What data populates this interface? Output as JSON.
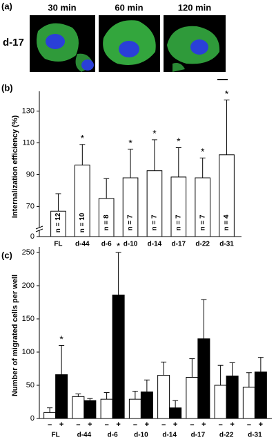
{
  "image_panel": {
    "panel_label": "(a)",
    "row_label": "d-17",
    "columns": [
      "30 min",
      "60 min",
      "120 min"
    ]
  },
  "chart_data": [
    {
      "type": "bar",
      "panel_label": "(b)",
      "ylabel": "Internalization efficiency (%)",
      "categories": [
        "FL",
        "d-44",
        "d-6",
        "d-10",
        "d-14",
        "d-17",
        "d-22",
        "d-31"
      ],
      "values": [
        67,
        96,
        75,
        88,
        92.5,
        88.5,
        88,
        102.5
      ],
      "errors": [
        11,
        13,
        12.5,
        18,
        19.5,
        18.5,
        12.5,
        34.5
      ],
      "n_labels": [
        "n = 12",
        "n = 10",
        "n = 8",
        "n = 7",
        "n = 7",
        "n = 7",
        "n = 7",
        "n = 4"
      ],
      "significance": [
        null,
        "*",
        null,
        "*",
        "*",
        "*",
        "*",
        "*"
      ],
      "color": "#ffffff",
      "ylim": [
        51,
        139
      ],
      "yticks": [
        0,
        70,
        90,
        110,
        130
      ],
      "axis_break": true
    },
    {
      "type": "grouped-bar",
      "panel_label": "(c)",
      "ylabel": "Number of migrated cells per well",
      "categories": [
        "FL",
        "d-44",
        "d-6",
        "d-10",
        "d-14",
        "d-17",
        "d-22",
        "d-31"
      ],
      "series": [
        {
          "name": "–",
          "color": "#ffffff",
          "values": [
            9,
            33,
            29,
            29,
            65,
            62,
            50,
            47
          ],
          "errors": [
            7,
            4,
            10,
            12,
            20,
            28,
            30,
            22
          ],
          "significance": [
            null,
            null,
            null,
            null,
            null,
            null,
            null,
            null
          ]
        },
        {
          "name": "+",
          "color": "#000000",
          "values": [
            66,
            27,
            186,
            40,
            16,
            120,
            64,
            70
          ],
          "errors": [
            44,
            3,
            64,
            18,
            11,
            59,
            20,
            22
          ],
          "significance": [
            "*",
            null,
            "*",
            null,
            null,
            null,
            null,
            null
          ]
        }
      ],
      "ylim": [
        0,
        250
      ],
      "yticks": [
        0,
        50,
        100,
        150,
        200,
        250
      ]
    }
  ]
}
